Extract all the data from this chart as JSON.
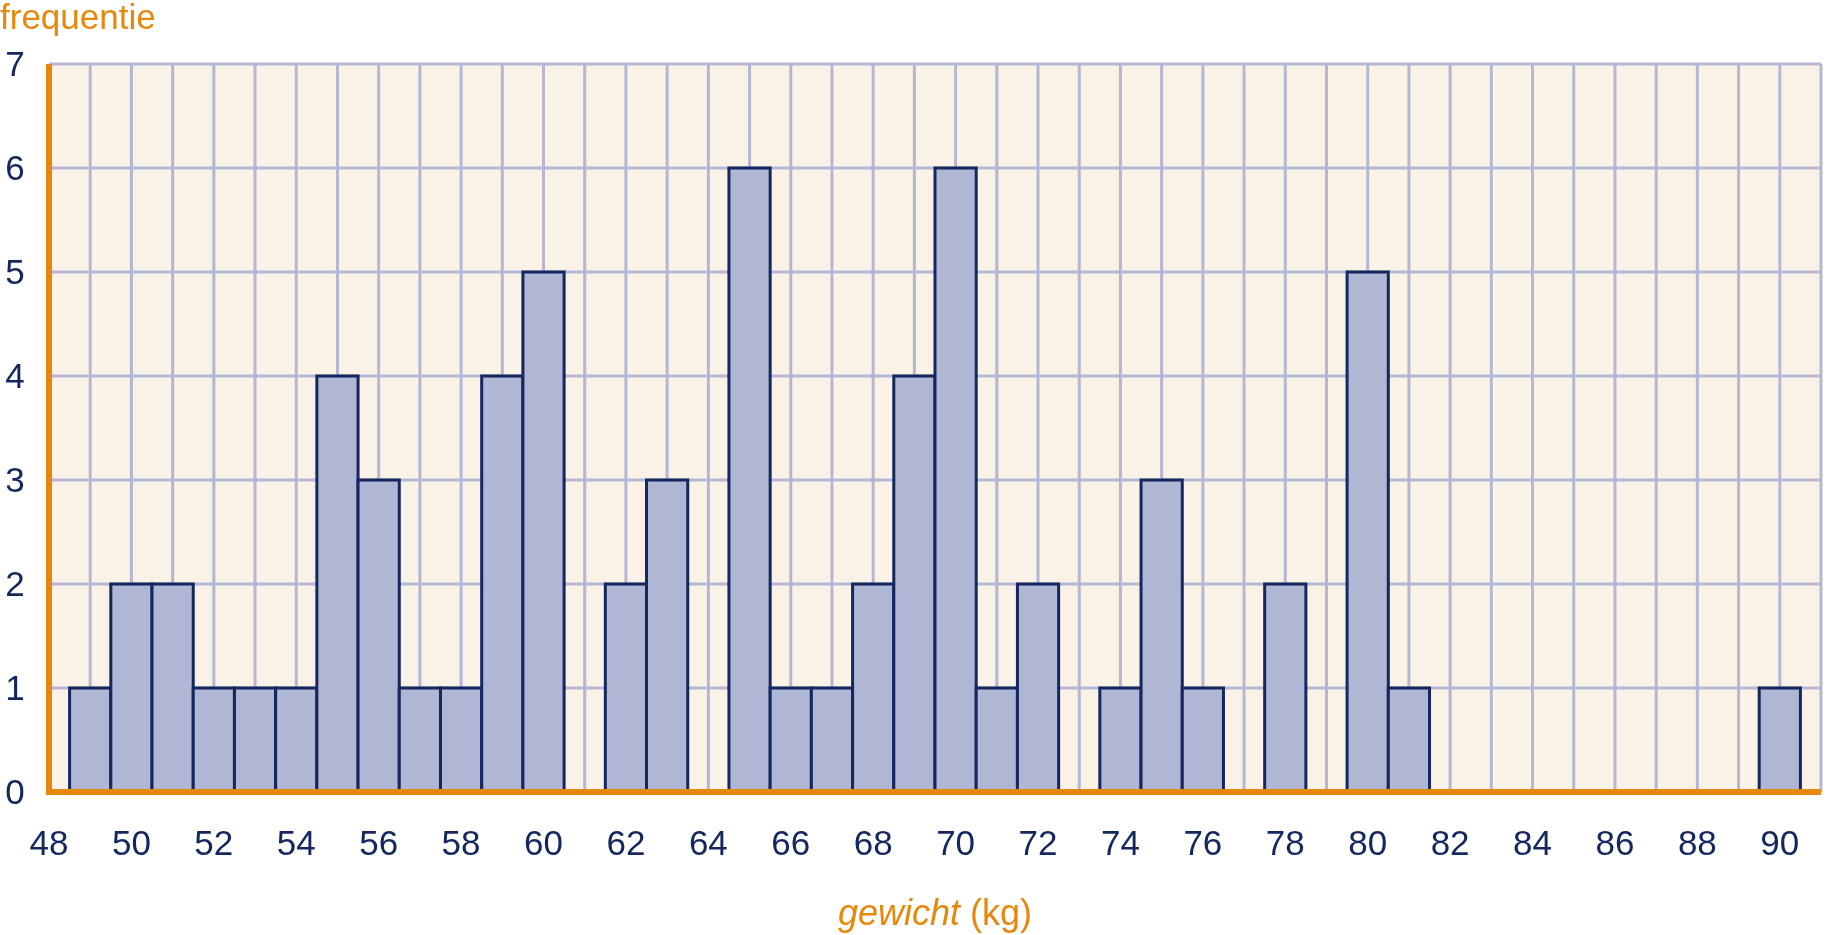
{
  "chart_data": {
    "type": "histogram",
    "xlabel": "gewicht (kg)",
    "ylabel": "frequentie",
    "bins": [
      48.5,
      49.5,
      50.5,
      51.5,
      52.5,
      53.5,
      54.5,
      55.5,
      56.5,
      57.5,
      58.5,
      59.5,
      60.5,
      61.5,
      62.5,
      63.5,
      64.5,
      65.5,
      66.5,
      67.5,
      68.5,
      69.5,
      70.5,
      71.5,
      72.5,
      73.5,
      74.5,
      75.5,
      76.5,
      77.5,
      78.5,
      79.5,
      80.5,
      81.5,
      82.5,
      83.5,
      84.5,
      85.5,
      86.5,
      87.5,
      88.5,
      89.5,
      90.5
    ],
    "values": [
      1,
      2,
      2,
      1,
      1,
      1,
      4,
      3,
      1,
      1,
      4,
      5,
      0,
      2,
      3,
      0,
      6,
      1,
      1,
      2,
      4,
      6,
      1,
      2,
      0,
      1,
      3,
      1,
      0,
      2,
      0,
      5,
      1,
      0,
      0,
      0,
      0,
      0,
      0,
      0,
      0,
      1
    ],
    "color": "#b0b7d4",
    "xlim": [
      48,
      91
    ],
    "xticks": [
      48,
      {
        "value": 49,
        "label": null
      },
      50,
      {
        "value": 51,
        "label": null
      },
      52,
      {
        "value": 53,
        "label": null
      },
      54,
      {
        "value": 55,
        "label": null
      },
      56,
      {
        "value": 57,
        "label": null
      },
      58,
      {
        "value": 59,
        "label": null
      },
      60,
      {
        "value": 61,
        "label": null
      },
      62,
      {
        "value": 63,
        "label": null
      },
      64,
      {
        "value": 65,
        "label": null
      },
      66,
      {
        "value": 67,
        "label": null
      },
      68,
      {
        "value": 69,
        "label": null
      },
      70,
      {
        "value": 71,
        "label": null
      },
      72,
      {
        "value": 73,
        "label": null
      },
      74,
      {
        "value": 75,
        "label": null
      },
      76,
      {
        "value": 77,
        "label": null
      },
      78,
      {
        "value": 79,
        "label": null
      },
      80,
      {
        "value": 81,
        "label": null
      },
      82,
      {
        "value": 83,
        "label": null
      },
      84,
      {
        "value": 85,
        "label": null
      },
      86,
      {
        "value": 87,
        "label": null
      },
      88,
      {
        "value": 89,
        "label": null
      },
      90,
      {
        "value": 91,
        "label": null
      }
    ],
    "ylim": [
      0,
      7
    ],
    "yticks": [
      0,
      1,
      2,
      3,
      4,
      5,
      6,
      7
    ],
    "grid": true
  }
}
